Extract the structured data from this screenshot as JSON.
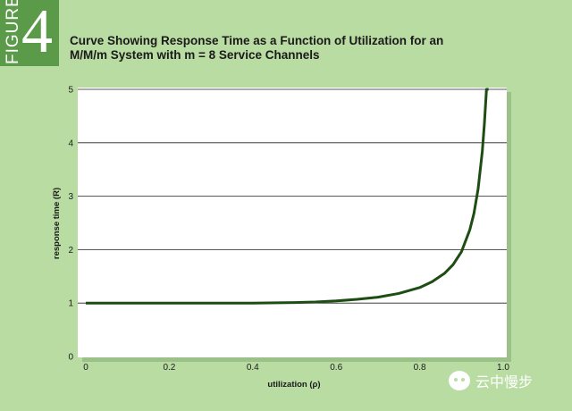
{
  "figure": {
    "word": "FIGURE",
    "number": "4"
  },
  "title": {
    "line1": "Curve Showing Response Time as a Function of Utilization for an",
    "line2": "M/M/m System with m = 8 Service Channels"
  },
  "watermark": "云中慢步",
  "colors": {
    "background": "#b9dca3",
    "badge": "#5a9a48",
    "plot_bg": "#ffffff",
    "curve": "#1e4d14",
    "grid": "#222222"
  },
  "chart_data": {
    "type": "line",
    "xlabel": "utilization (ρ)",
    "ylabel": "response time (R)",
    "xlim": [
      0,
      1.0
    ],
    "ylim": [
      0,
      5
    ],
    "xticks": [
      "0",
      "0.2",
      "0.4",
      "0.6",
      "0.8",
      "1.0"
    ],
    "yticks": [
      "0",
      "1",
      "2",
      "3",
      "4",
      "5"
    ],
    "grid": "horizontal",
    "series": [
      {
        "x": [
          0,
          0.1,
          0.2,
          0.3,
          0.4,
          0.5,
          0.55,
          0.6,
          0.65,
          0.7,
          0.75,
          0.8,
          0.83,
          0.86,
          0.88,
          0.9,
          0.92,
          0.93,
          0.94,
          0.95,
          0.955,
          0.96,
          0.965
        ],
        "y": [
          1.0,
          1.0,
          1.0,
          1.0,
          1.0,
          1.01,
          1.02,
          1.04,
          1.07,
          1.11,
          1.18,
          1.29,
          1.4,
          1.56,
          1.72,
          1.96,
          2.37,
          2.68,
          3.14,
          3.84,
          4.36,
          5.0,
          5.0
        ]
      }
    ]
  }
}
